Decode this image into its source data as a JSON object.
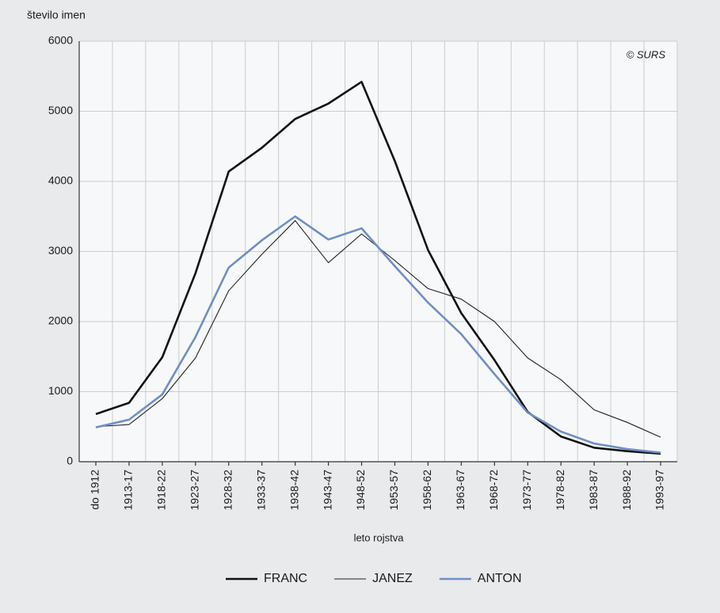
{
  "chart_data": {
    "type": "line",
    "ylabel": "število imen",
    "xlabel": "leto rojstva",
    "annotation": "© SURS",
    "categories": [
      "do 1912",
      "1913-17",
      "1918-22",
      "1923-27",
      "1928-32",
      "1933-37",
      "1938-42",
      "1943-47",
      "1948-52",
      "1953-57",
      "1958-62",
      "1963-67",
      "1968-72",
      "1973-77",
      "1978-82",
      "1983-87",
      "1988-92",
      "1993-97"
    ],
    "series": [
      {
        "name": "FRANC",
        "color": "#111111",
        "values": [
          680,
          840,
          1490,
          2690,
          4140,
          4480,
          4890,
          5110,
          5420,
          4290,
          3020,
          2120,
          1450,
          710,
          360,
          200,
          150,
          115
        ]
      },
      {
        "name": "JANEZ",
        "color": "#222222",
        "values": [
          500,
          530,
          900,
          1480,
          2440,
          2960,
          3440,
          2840,
          3250,
          2870,
          2470,
          2320,
          2000,
          1480,
          1170,
          740,
          560,
          350
        ]
      },
      {
        "name": "ANTON",
        "color": "#6f8fc4",
        "values": [
          490,
          600,
          960,
          1780,
          2770,
          3160,
          3500,
          3170,
          3330,
          2790,
          2270,
          1820,
          1250,
          700,
          430,
          260,
          180,
          130
        ]
      }
    ],
    "ylim": [
      0,
      6000
    ],
    "yticks": [
      0,
      1000,
      2000,
      3000,
      4000,
      5000,
      6000
    ],
    "grid": true
  }
}
